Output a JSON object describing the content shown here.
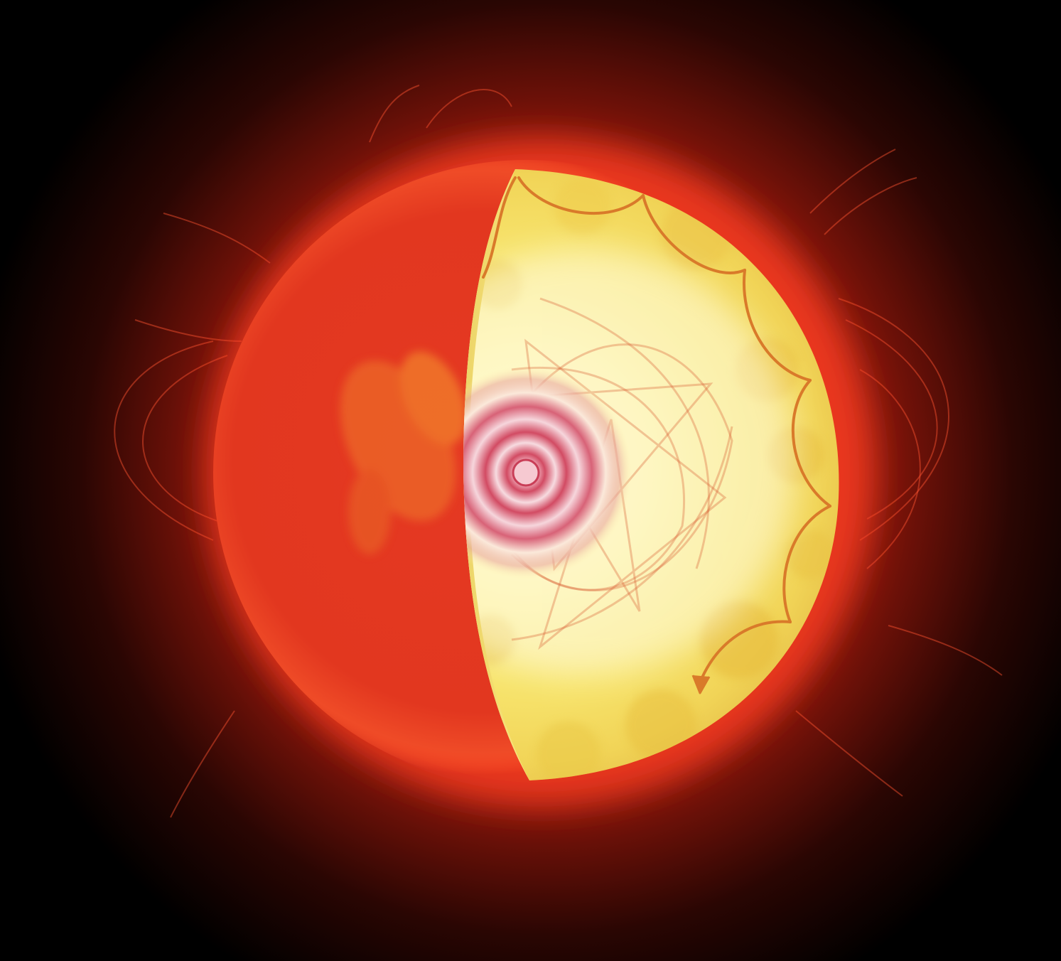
{
  "scene": {
    "colors": {
      "space": "#000000",
      "corona": "#e23a22",
      "corona_glow": "#ff4a22",
      "photosphere": "#e53923",
      "interior_light": "#fff7b8",
      "interior_mid": "#f6e26a",
      "interior_edge": "#e7bf4a",
      "core_center": "#fff0f2",
      "core_ring": "#d2425a",
      "convection_line": "#d97a2a",
      "wave_line": "#d9643a"
    },
    "icons": {
      "star": "star-icon",
      "core": "core-icon",
      "arrow": "arrow-icon"
    }
  }
}
